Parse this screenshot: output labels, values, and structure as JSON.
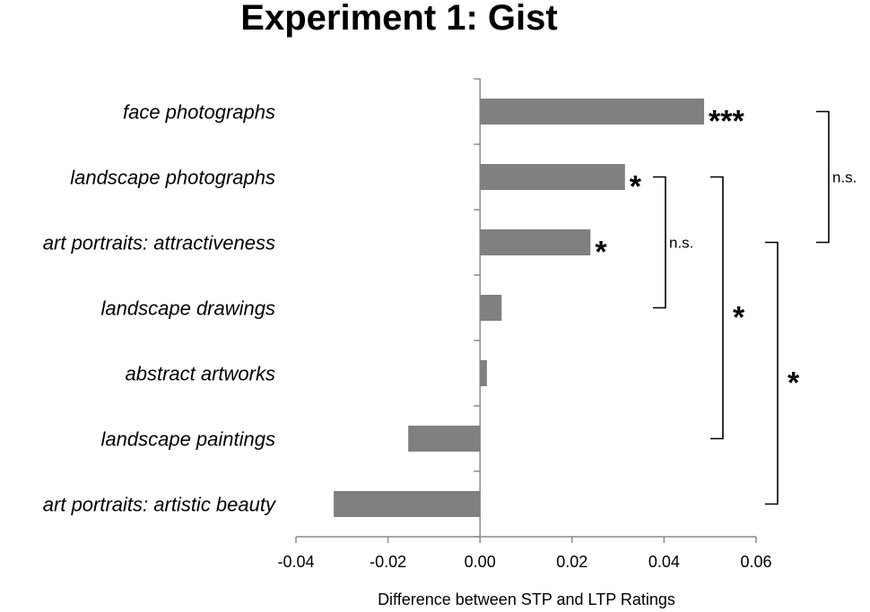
{
  "chart_data": {
    "type": "bar",
    "orientation": "horizontal",
    "title": "Experiment 1: Gist",
    "xlabel": "Difference between STP and LTP Ratings",
    "ylabel": "",
    "xlim": [
      -0.04,
      0.06
    ],
    "xticks": [
      "-0.04",
      "-0.02",
      "0.00",
      "0.02",
      "0.04",
      "0.06"
    ],
    "xtick_values": [
      -0.04,
      -0.02,
      0.0,
      0.02,
      0.04,
      0.06
    ],
    "grid": false,
    "bar_color": "#808080",
    "categories": [
      "face photographs",
      "landscape photographs",
      "art portraits: attractiveness",
      "landscape drawings",
      "abstract artworks",
      "landscape paintings",
      "art portraits: artistic beauty"
    ],
    "values": [
      0.0487,
      0.0315,
      0.024,
      0.0047,
      0.0015,
      -0.0156,
      -0.0318
    ],
    "bar_annotations": [
      "***",
      "*",
      "*",
      "",
      "",
      "",
      ""
    ],
    "comparisons": [
      {
        "from": "landscape photographs",
        "to": "landscape drawings",
        "label": "n.s."
      },
      {
        "from": "landscape photographs",
        "to": "landscape paintings",
        "label": "*"
      },
      {
        "from": "art portraits: attractiveness",
        "to": "art portraits: artistic beauty",
        "label": "*"
      },
      {
        "from": "face photographs",
        "to": "art portraits: attractiveness",
        "label": "n.s."
      }
    ]
  }
}
